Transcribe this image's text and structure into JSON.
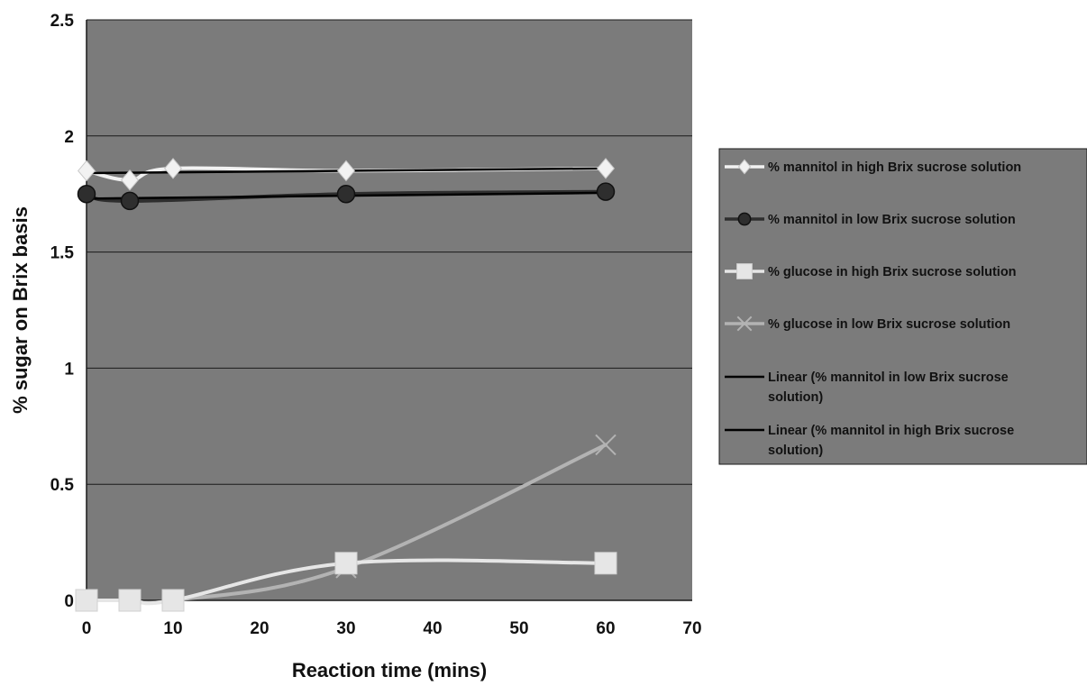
{
  "chart_data": {
    "type": "line",
    "xlabel": "Reaction time (mins)",
    "ylabel": "% sugar on Brix basis",
    "xlim": [
      0,
      70
    ],
    "ylim": [
      0,
      2.5
    ],
    "x_ticks": [
      "0",
      "10",
      "20",
      "30",
      "40",
      "50",
      "60",
      "70"
    ],
    "y_ticks": [
      "0",
      "0.5",
      "1",
      "1.5",
      "2",
      "2.5"
    ],
    "grid": "horizontal",
    "legend_position": "right",
    "colors": {
      "plot_background": "#7b7b7b",
      "mannitol_high": "#f2f2f2",
      "mannitol_low": "#2e2e2e",
      "glucose_high": "#e6e6e6",
      "glucose_low": "#b3b3b3",
      "trend_lines": "#000000"
    },
    "series": [
      {
        "name": "% mannitol in high Brix sucrose solution",
        "marker": "diamond",
        "x": [
          0,
          5,
          10,
          30,
          60
        ],
        "y": [
          1.85,
          1.81,
          1.86,
          1.85,
          1.86
        ]
      },
      {
        "name": "% mannitol in low Brix sucrose solution",
        "marker": "circle",
        "x": [
          0,
          5,
          30,
          60
        ],
        "y": [
          1.75,
          1.72,
          1.75,
          1.76
        ]
      },
      {
        "name": "% glucose in high Brix sucrose solution",
        "marker": "square",
        "x": [
          0,
          5,
          10,
          30,
          60
        ],
        "y": [
          0,
          0,
          0,
          0.16,
          0.16
        ]
      },
      {
        "name": "% glucose in low Brix sucrose solution",
        "marker": "x",
        "x": [
          0,
          5,
          10,
          30,
          60
        ],
        "y": [
          0,
          0,
          0,
          0.14,
          0.67
        ]
      },
      {
        "name": "Linear (% mannitol in low Brix sucrose solution)",
        "marker": "none",
        "x": [
          0,
          60
        ],
        "y": [
          1.73,
          1.755
        ]
      },
      {
        "name": "Linear (% mannitol in high Brix sucrose solution)",
        "marker": "none",
        "x": [
          0,
          60
        ],
        "y": [
          1.84,
          1.86
        ]
      }
    ]
  }
}
